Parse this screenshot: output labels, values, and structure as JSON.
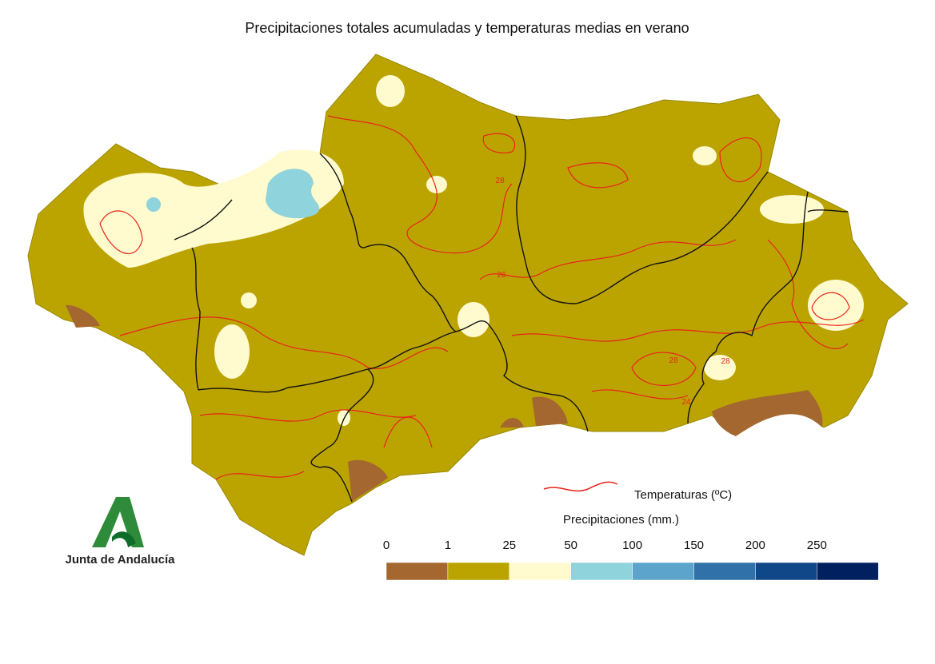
{
  "header": {
    "title": "Precipitaciones totales acumuladas y temperaturas medias en verano"
  },
  "map": {
    "contour_labels": [
      "28",
      "26",
      "28",
      "24",
      "28"
    ]
  },
  "legend": {
    "temperature_label": "Temperaturas (ºC)",
    "precipitation_label": "Precipitaciones (mm.)",
    "ticks": [
      "0",
      "1",
      "25",
      "50",
      "100",
      "150",
      "200",
      "250"
    ],
    "colors": [
      "#a4672f",
      "#bba400",
      "#fffbcf",
      "#8fd3dd",
      "#5ca4cb",
      "#2f71a8",
      "#0f4788",
      "#00205f"
    ]
  },
  "logo": {
    "text": "Junta de Andalucía"
  }
}
